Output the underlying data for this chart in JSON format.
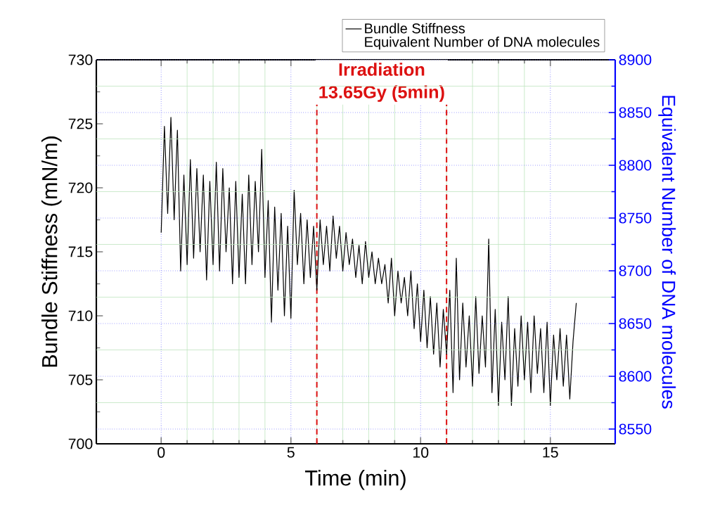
{
  "chart_data": {
    "type": "line",
    "xlabel": "Time (min)",
    "ylabel": "Bundle Stiffness (mN/m)",
    "y2label": "Equivalent Number of  DNA molecules",
    "xlim": [
      -2.5,
      17.5
    ],
    "xticks": [
      0,
      5,
      10,
      15
    ],
    "ylim": [
      700,
      730
    ],
    "yticks": [
      700,
      705,
      710,
      715,
      720,
      725,
      730
    ],
    "y2lim": [
      8536,
      8900
    ],
    "y2ticks": [
      8550,
      8600,
      8650,
      8700,
      8750,
      8800,
      8850,
      8900
    ],
    "grid": true,
    "legend": "top right",
    "line_style": "solid",
    "annotations": [
      "Irradiation",
      "13.65Gy (5min)"
    ],
    "ref_lines": [
      {
        "axis": "x",
        "value": 6,
        "color": "#dd1111",
        "line_style": "dashed"
      },
      {
        "axis": "x",
        "value": 11,
        "color": "#dd1111",
        "line_style": "dashed"
      }
    ],
    "series": [
      {
        "name": "Bundle Stiffness",
        "color": "#000000",
        "x": [
          0,
          0.125,
          0.25,
          0.375,
          0.5,
          0.625,
          0.75,
          0.875,
          1,
          1.125,
          1.25,
          1.375,
          1.5,
          1.625,
          1.75,
          1.875,
          2,
          2.125,
          2.25,
          2.375,
          2.5,
          2.625,
          2.75,
          2.875,
          3,
          3.125,
          3.25,
          3.375,
          3.5,
          3.625,
          3.75,
          3.875,
          4,
          4.125,
          4.25,
          4.375,
          4.5,
          4.625,
          4.75,
          4.875,
          5,
          5.125,
          5.25,
          5.375,
          5.5,
          5.625,
          5.75,
          5.875,
          6,
          6.125,
          6.25,
          6.375,
          6.5,
          6.625,
          6.75,
          6.875,
          7,
          7.125,
          7.25,
          7.375,
          7.5,
          7.625,
          7.75,
          7.875,
          8,
          8.125,
          8.25,
          8.375,
          8.5,
          8.625,
          8.75,
          8.875,
          9,
          9.125,
          9.25,
          9.375,
          9.5,
          9.625,
          9.75,
          9.875,
          10,
          10.125,
          10.25,
          10.375,
          10.5,
          10.625,
          10.75,
          10.875,
          11,
          11.125,
          11.25,
          11.375,
          11.5,
          11.625,
          11.75,
          11.875,
          12,
          12.125,
          12.25,
          12.375,
          12.5,
          12.625,
          12.75,
          12.875,
          13,
          13.125,
          13.25,
          13.375,
          13.5,
          13.625,
          13.75,
          13.875,
          14,
          14.125,
          14.25,
          14.375,
          14.5,
          14.625,
          14.75,
          14.875,
          15,
          15.125,
          15.25,
          15.375,
          15.5,
          15.625,
          15.75,
          15.875,
          16
        ],
        "values": [
          716.5,
          724.8,
          718,
          725.5,
          717.5,
          724.5,
          713.5,
          721,
          714,
          722.2,
          714.5,
          721.5,
          715,
          721,
          712.8,
          720.5,
          714,
          722,
          713.5,
          721.5,
          715,
          720,
          712.5,
          720.5,
          713,
          719.5,
          712.5,
          721,
          714,
          720.5,
          715,
          723,
          713,
          719,
          709.5,
          718.5,
          712,
          718,
          710,
          717,
          709.8,
          719.8,
          714,
          718,
          712.5,
          717.5,
          713,
          717,
          712,
          717.5,
          714,
          717,
          713.5,
          717.8,
          714.5,
          717,
          713.5,
          716.5,
          714,
          716,
          713,
          715.5,
          712.5,
          715.8,
          713,
          715,
          712.5,
          714.5,
          712.5,
          714,
          711,
          714.5,
          710,
          713.5,
          711,
          713,
          710,
          713.5,
          709,
          712.5,
          708,
          712,
          707.5,
          711.5,
          707,
          711,
          706,
          710.5,
          707,
          712,
          704,
          714.5,
          705,
          711,
          706,
          710,
          704.5,
          711.5,
          705.5,
          710,
          706,
          716,
          704,
          710.5,
          703,
          709.5,
          705,
          711.5,
          703,
          709,
          704.5,
          710,
          705,
          709.5,
          704,
          710,
          705.5,
          709,
          704,
          709.5,
          703,
          708.5,
          705,
          709,
          704.5,
          708.5,
          703.5,
          708,
          711
        ]
      },
      {
        "name": "Equivalent Number of DNA molecules",
        "axis": "y2",
        "values": [
          null
        ]
      }
    ]
  }
}
